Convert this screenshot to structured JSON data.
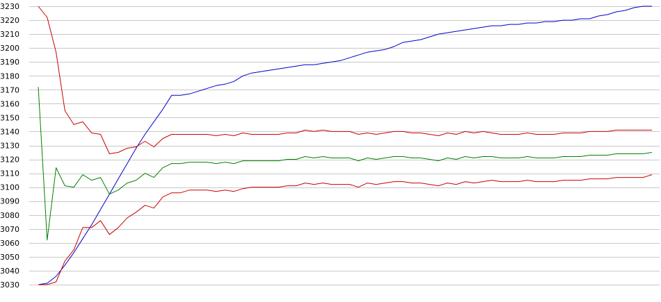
{
  "chart_data": {
    "type": "line",
    "title": "",
    "xlabel": "",
    "ylabel": "",
    "ylim": [
      3030,
      3230
    ],
    "yticks": [
      3030,
      3040,
      3050,
      3060,
      3070,
      3080,
      3090,
      3100,
      3110,
      3120,
      3130,
      3140,
      3150,
      3160,
      3170,
      3180,
      3190,
      3200,
      3210,
      3220,
      3230
    ],
    "grid": true,
    "legend": "none",
    "x": [
      1,
      2,
      3,
      4,
      5,
      6,
      7,
      8,
      9,
      10,
      11,
      12,
      13,
      14,
      15,
      16,
      17,
      18,
      19,
      20,
      21,
      22,
      23,
      24,
      25,
      26,
      27,
      28,
      29,
      30,
      31,
      32,
      33,
      34,
      35,
      36,
      37,
      38,
      39,
      40,
      41,
      42,
      43,
      44,
      45,
      46,
      47,
      48,
      49,
      50,
      51,
      52,
      53,
      54,
      55,
      56,
      57,
      58,
      59,
      60,
      61,
      62,
      63,
      64,
      65,
      66,
      67,
      68,
      69,
      70
    ],
    "series": [
      {
        "color": "#0000c8",
        "values": [
          3030,
          3031,
          3036,
          3044,
          3053,
          3063,
          3073,
          3084,
          3095,
          3106,
          3117,
          3128,
          3138,
          3147,
          3156,
          3166,
          3166,
          3167,
          3169,
          3171,
          3173,
          3174,
          3176,
          3180,
          3182,
          3183,
          3184,
          3185,
          3186,
          3187,
          3188,
          3188,
          3189,
          3190,
          3191,
          3193,
          3195,
          3197,
          3198,
          3199,
          3201,
          3204,
          3205,
          3206,
          3208,
          3210,
          3211,
          3212,
          3213,
          3214,
          3215,
          3216,
          3216,
          3217,
          3217,
          3218,
          3218,
          3219,
          3219,
          3220,
          3220,
          3221,
          3221,
          3223,
          3224,
          3226,
          3227,
          3229,
          3230,
          3230
        ]
      },
      {
        "color": "#c80000",
        "values": [
          3230,
          3222,
          3197,
          3155,
          3145,
          3147,
          3139,
          3138,
          3124,
          3125,
          3128,
          3129,
          3133,
          3129,
          3135,
          3138,
          3138,
          3138,
          3138,
          3138,
          3137,
          3138,
          3137,
          3139,
          3138,
          3138,
          3138,
          3138,
          3139,
          3139,
          3141,
          3140,
          3141,
          3140,
          3140,
          3140,
          3138,
          3139,
          3138,
          3139,
          3140,
          3140,
          3139,
          3139,
          3138,
          3137,
          3139,
          3138,
          3140,
          3139,
          3140,
          3139,
          3138,
          3138,
          3138,
          3139,
          3138,
          3138,
          3138,
          3139,
          3139,
          3139,
          3140,
          3140,
          3140,
          3141,
          3141,
          3141,
          3141,
          3141
        ]
      },
      {
        "color": "#008000",
        "values": [
          3172,
          3062,
          3114,
          3101,
          3100,
          3109,
          3105,
          3107,
          3095,
          3098,
          3103,
          3105,
          3110,
          3107,
          3114,
          3117,
          3117,
          3118,
          3118,
          3118,
          3117,
          3118,
          3117,
          3119,
          3119,
          3119,
          3119,
          3119,
          3120,
          3120,
          3122,
          3121,
          3122,
          3121,
          3121,
          3121,
          3119,
          3121,
          3120,
          3121,
          3122,
          3122,
          3121,
          3121,
          3120,
          3119,
          3121,
          3120,
          3122,
          3121,
          3122,
          3122,
          3121,
          3121,
          3121,
          3122,
          3121,
          3121,
          3121,
          3122,
          3122,
          3122,
          3123,
          3123,
          3123,
          3124,
          3124,
          3124,
          3124,
          3125
        ]
      },
      {
        "color": "#c80000",
        "values": [
          3030,
          3030,
          3032,
          3047,
          3055,
          3071,
          3071,
          3076,
          3066,
          3071,
          3078,
          3082,
          3087,
          3085,
          3093,
          3096,
          3096,
          3098,
          3098,
          3098,
          3097,
          3098,
          3097,
          3099,
          3100,
          3100,
          3100,
          3100,
          3101,
          3101,
          3103,
          3102,
          3103,
          3102,
          3102,
          3102,
          3100,
          3103,
          3102,
          3103,
          3104,
          3104,
          3103,
          3103,
          3102,
          3101,
          3103,
          3102,
          3104,
          3103,
          3104,
          3105,
          3104,
          3104,
          3104,
          3105,
          3104,
          3104,
          3104,
          3105,
          3105,
          3105,
          3106,
          3106,
          3106,
          3107,
          3107,
          3107,
          3107,
          3109
        ]
      }
    ]
  }
}
